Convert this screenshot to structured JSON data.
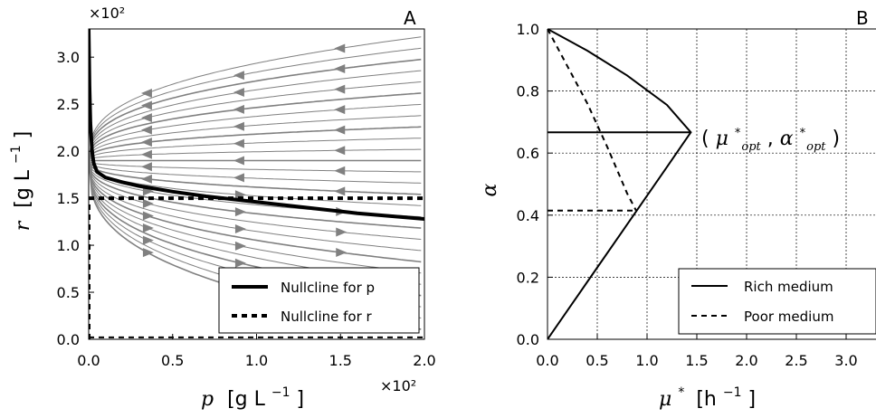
{
  "chart_data": [
    {
      "panel": "A",
      "type": "line",
      "title": "",
      "xlabel": "p [g L⁻¹]",
      "ylabel": "r [g L⁻¹]",
      "x_multiplier": "×10²",
      "y_multiplier": "×10²",
      "xlim": [
        0,
        2.0
      ],
      "ylim": [
        0,
        3.3
      ],
      "xticks": [
        "0.0",
        "0.5",
        "1.0",
        "1.5",
        "2.0"
      ],
      "yticks": [
        "0.0",
        "0.5",
        "1.0",
        "1.5",
        "2.0",
        "2.5",
        "3.0"
      ],
      "background": "streamlines (vector field, gray) with direction arrows",
      "series": [
        {
          "name": "Nullcline for p",
          "style": "solid-thick",
          "x": [
            0.0,
            0.005,
            0.01,
            0.02,
            0.03,
            0.05,
            0.1,
            0.2,
            0.3,
            0.5,
            0.7,
            1.0,
            1.3,
            1.6,
            2.0
          ],
          "y": [
            3.3,
            2.7,
            2.3,
            2.0,
            1.87,
            1.78,
            1.72,
            1.67,
            1.63,
            1.57,
            1.52,
            1.46,
            1.4,
            1.34,
            1.28
          ]
        },
        {
          "name": "Nullcline for r",
          "style": "dashed-thick",
          "x": [
            0.0,
            2.0
          ],
          "y": [
            1.5,
            1.5
          ]
        },
        {
          "name": "Nullcline for r (axis segment)",
          "style": "dashed-thick",
          "x": [
            0.0,
            0.0
          ],
          "y": [
            0.0,
            1.5
          ]
        },
        {
          "name": "Nullcline for r (bottom segment)",
          "style": "dashed",
          "x": [
            0.0,
            2.0
          ],
          "y": [
            0.02,
            0.02
          ]
        }
      ],
      "legend": {
        "position": "bottom-right",
        "entries": [
          "Nullcline for p",
          "Nullcline for r"
        ]
      }
    },
    {
      "panel": "B",
      "type": "line",
      "title": "",
      "xlabel": "μ* [h⁻¹]",
      "ylabel": "α",
      "xlim": [
        0,
        3.3
      ],
      "ylim": [
        0,
        1.0
      ],
      "xticks": [
        "0.0",
        "0.5",
        "1.0",
        "1.5",
        "2.0",
        "2.5",
        "3.0"
      ],
      "yticks": [
        "0.0",
        "0.2",
        "0.4",
        "0.6",
        "0.8",
        "1.0"
      ],
      "grid": true,
      "annotation": "(μ*opt, α*opt)",
      "series": [
        {
          "name": "Rich medium",
          "style": "solid",
          "x": [
            0.0,
            0.4,
            0.8,
            1.2,
            1.44,
            1.2,
            0.8,
            0.4,
            0.0
          ],
          "y": [
            0.0,
            0.185,
            0.37,
            0.555,
            0.667,
            0.755,
            0.85,
            0.93,
            1.0
          ]
        },
        {
          "name": "Rich medium optimum line",
          "style": "solid",
          "x": [
            0.0,
            1.44
          ],
          "y": [
            0.667,
            0.667
          ]
        },
        {
          "name": "Poor medium",
          "style": "dashed",
          "x": [
            0.0,
            0.2,
            0.4,
            0.6,
            0.8,
            0.89
          ],
          "y": [
            1.0,
            0.88,
            0.76,
            0.62,
            0.47,
            0.415
          ]
        },
        {
          "name": "Poor medium optimum line",
          "style": "dashed",
          "x": [
            0.0,
            0.89
          ],
          "y": [
            0.415,
            0.415
          ]
        }
      ],
      "legend": {
        "position": "bottom-right",
        "entries": [
          "Rich medium",
          "Poor medium"
        ]
      }
    }
  ],
  "panels": {
    "a": {
      "letter": "A",
      "multiplier_top": "×10²",
      "multiplier_bottom": "×10²"
    },
    "b": {
      "letter": "B"
    }
  },
  "labels": {
    "a_x_main": "p",
    "a_x_unit": "[g L",
    "a_x_exp": "−1",
    "a_x_close": "]",
    "a_y_main": "r",
    "a_y_unit": "[g L",
    "a_y_exp": "−1",
    "a_y_close": "]",
    "b_x_main": "μ",
    "b_x_star": "*",
    "b_x_unit": "[h",
    "b_x_exp": "−1",
    "b_x_close": "]",
    "b_y_main": "α",
    "ann_open": "(",
    "ann_mu": "μ",
    "ann_sub": "opt",
    "ann_comma": ", ",
    "ann_alpha": "α",
    "ann_close": ")",
    "ann_star": "*"
  },
  "legend_a": [
    "Nullcline for p",
    "Nullcline for r"
  ],
  "legend_b": [
    "Rich medium",
    "Poor medium"
  ],
  "colors": {
    "stream": "#808080",
    "line": "#000000",
    "grid": "#000000"
  }
}
